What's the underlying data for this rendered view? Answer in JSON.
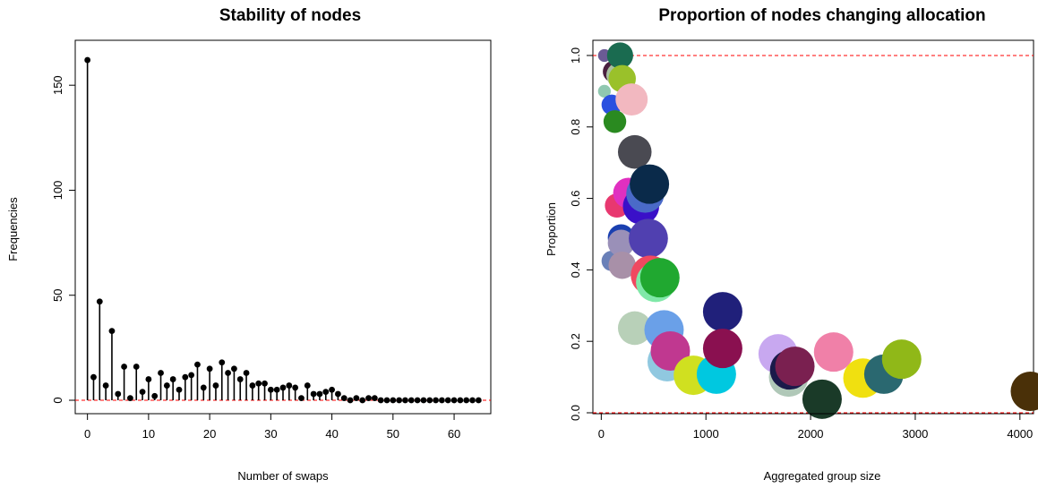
{
  "chart_data": [
    {
      "type": "stem",
      "title": "Stability of nodes",
      "xlabel": "Number of swaps",
      "ylabel": "Frequencies",
      "xlim": [
        -2,
        66
      ],
      "ylim": [
        0,
        165
      ],
      "xticks": [
        0,
        10,
        20,
        30,
        40,
        50,
        60
      ],
      "yticks": [
        0,
        50,
        100,
        150
      ],
      "reference_line": {
        "y": 0,
        "style": "dashed",
        "color": "#ff0000"
      },
      "x": [
        0,
        1,
        2,
        3,
        4,
        5,
        6,
        7,
        8,
        9,
        10,
        11,
        12,
        13,
        14,
        15,
        16,
        17,
        18,
        19,
        20,
        21,
        22,
        23,
        24,
        25,
        26,
        27,
        28,
        29,
        30,
        31,
        32,
        33,
        34,
        35,
        36,
        37,
        38,
        39,
        40,
        41,
        42,
        43,
        44,
        45,
        46,
        47,
        48,
        49,
        50,
        51,
        52,
        53,
        54,
        55,
        56,
        57,
        58,
        59,
        60,
        61,
        62,
        63,
        64
      ],
      "values": [
        162,
        11,
        47,
        7,
        33,
        3,
        16,
        1,
        16,
        4,
        10,
        2,
        13,
        7,
        10,
        5,
        11,
        12,
        17,
        6,
        15,
        7,
        18,
        13,
        15,
        10,
        13,
        7,
        8,
        8,
        5,
        5,
        6,
        7,
        6,
        1,
        7,
        3,
        3,
        4,
        5,
        3,
        1,
        0,
        1,
        0,
        1,
        1,
        0,
        0,
        0,
        0,
        0,
        0,
        0,
        0,
        0,
        0,
        0,
        0,
        0,
        0,
        0,
        0,
        0
      ]
    },
    {
      "type": "scatter",
      "title": "Proportion of nodes changing allocation",
      "xlabel": "Aggregated group size",
      "ylabel": "Proportion",
      "xlim": [
        -80,
        4130
      ],
      "ylim": [
        0,
        1.04
      ],
      "xticks": [
        0,
        1000,
        2000,
        3000,
        4000
      ],
      "yticks": [
        0.0,
        0.2,
        0.4,
        0.6,
        0.8,
        1.0
      ],
      "reference_lines": [
        {
          "y": 1.0,
          "style": "dashed",
          "color": "#ff0000"
        },
        {
          "y": 0.0,
          "style": "dashed",
          "color": "#ff0000"
        }
      ],
      "points": [
        {
          "x": 30,
          "y": 1.0,
          "color": "#6b5b95"
        },
        {
          "x": 180,
          "y": 1.0,
          "color": "#1a6b50"
        },
        {
          "x": 120,
          "y": 0.955,
          "color": "#4a1f3f"
        },
        {
          "x": 170,
          "y": 0.945,
          "color": "#a8c0a0"
        },
        {
          "x": 200,
          "y": 0.935,
          "color": "#9ac12a"
        },
        {
          "x": 30,
          "y": 0.9,
          "color": "#90c8b0"
        },
        {
          "x": 290,
          "y": 0.877,
          "color": "#f2b8c0"
        },
        {
          "x": 100,
          "y": 0.862,
          "color": "#2a50e0"
        },
        {
          "x": 130,
          "y": 0.815,
          "color": "#2a8a20"
        },
        {
          "x": 320,
          "y": 0.73,
          "color": "#4a4a52"
        },
        {
          "x": 460,
          "y": 0.64,
          "color": "#0a2a4a"
        },
        {
          "x": 420,
          "y": 0.613,
          "color": "#4a6ac8"
        },
        {
          "x": 260,
          "y": 0.615,
          "color": "#e030c0"
        },
        {
          "x": 380,
          "y": 0.578,
          "color": "#3a10c8"
        },
        {
          "x": 150,
          "y": 0.58,
          "color": "#e83870"
        },
        {
          "x": 190,
          "y": 0.49,
          "color": "#1a40b0"
        },
        {
          "x": 190,
          "y": 0.475,
          "color": "#9a90b8"
        },
        {
          "x": 450,
          "y": 0.488,
          "color": "#5040b0"
        },
        {
          "x": 100,
          "y": 0.425,
          "color": "#6a80b8"
        },
        {
          "x": 200,
          "y": 0.413,
          "color": "#a890a8"
        },
        {
          "x": 470,
          "y": 0.385,
          "color": "#f04860"
        },
        {
          "x": 560,
          "y": 0.378,
          "color": "#20a830"
        },
        {
          "x": 520,
          "y": 0.365,
          "color": "#80e8a8"
        },
        {
          "x": 1160,
          "y": 0.283,
          "color": "#20207a"
        },
        {
          "x": 320,
          "y": 0.237,
          "color": "#b8d0b8"
        },
        {
          "x": 600,
          "y": 0.232,
          "color": "#6aa0e8"
        },
        {
          "x": 660,
          "y": 0.173,
          "color": "#c03890"
        },
        {
          "x": 1160,
          "y": 0.18,
          "color": "#8a1050"
        },
        {
          "x": 630,
          "y": 0.143,
          "color": "#90c8e0"
        },
        {
          "x": 880,
          "y": 0.105,
          "color": "#d0e020"
        },
        {
          "x": 1100,
          "y": 0.108,
          "color": "#00c8e0"
        },
        {
          "x": 1690,
          "y": 0.165,
          "color": "#c8a8f0"
        },
        {
          "x": 1850,
          "y": 0.13,
          "color": "#7a2050"
        },
        {
          "x": 1800,
          "y": 0.12,
          "color": "#1a1a4a"
        },
        {
          "x": 1790,
          "y": 0.1,
          "color": "#b0c8b8"
        },
        {
          "x": 2220,
          "y": 0.17,
          "color": "#f080a8"
        },
        {
          "x": 2110,
          "y": 0.038,
          "color": "#1a3a28"
        },
        {
          "x": 2500,
          "y": 0.097,
          "color": "#f0e010"
        },
        {
          "x": 2700,
          "y": 0.108,
          "color": "#2a6870"
        },
        {
          "x": 2870,
          "y": 0.15,
          "color": "#90b818"
        },
        {
          "x": 4100,
          "y": 0.06,
          "color": "#4a3008"
        }
      ]
    }
  ]
}
